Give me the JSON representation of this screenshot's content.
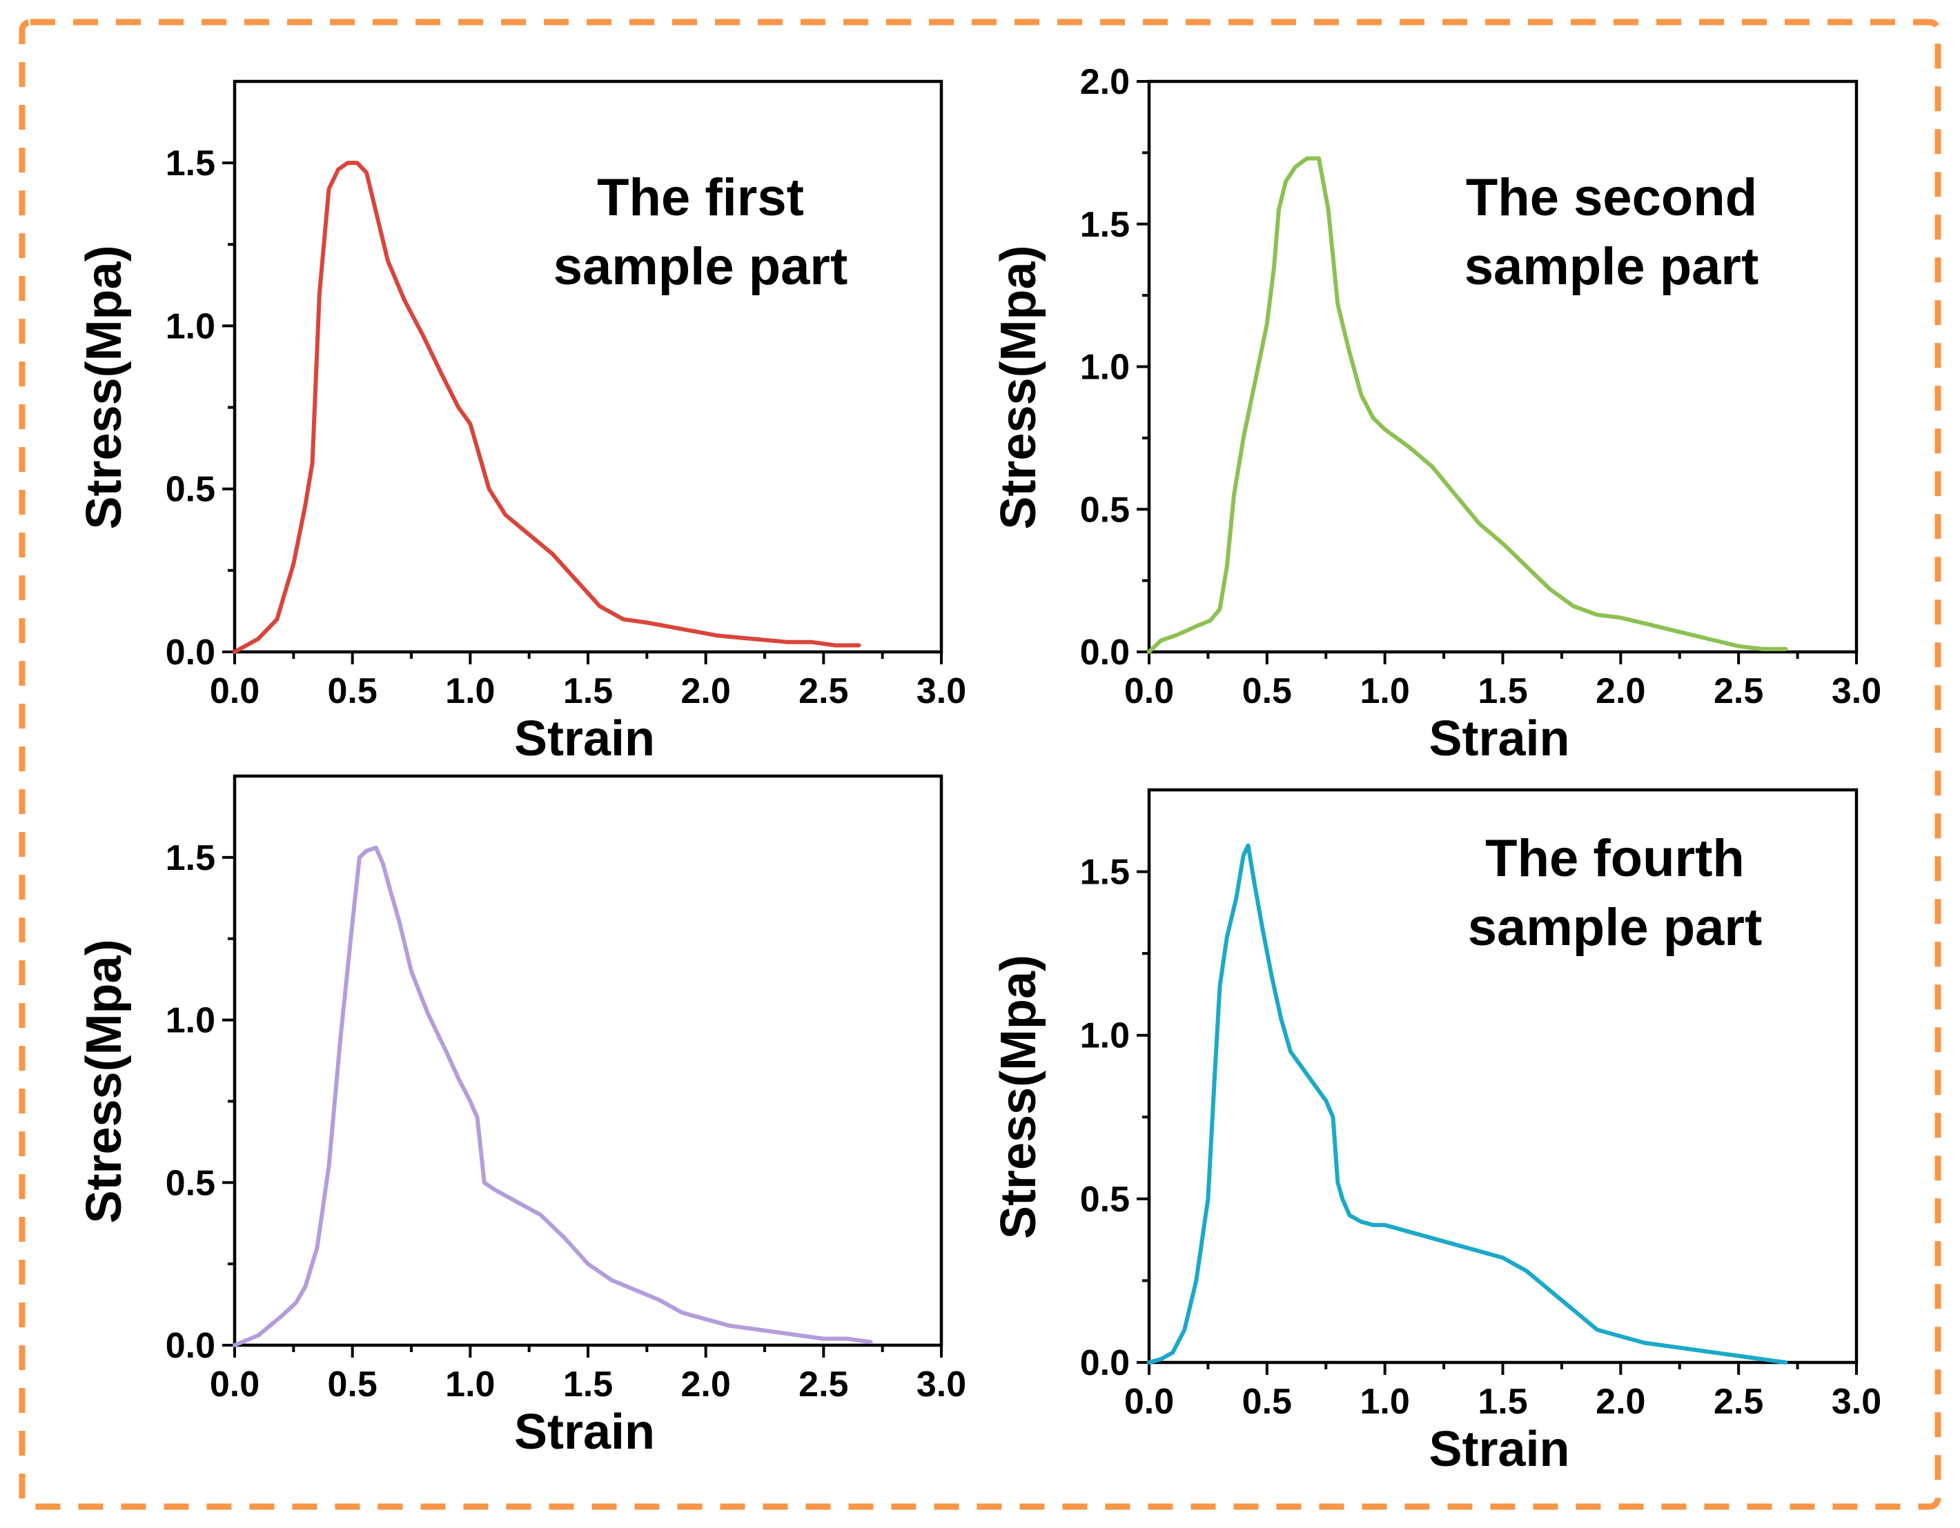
{
  "chart_data": [
    {
      "type": "line",
      "xlabel": "Strain",
      "ylabel": "Stress(Mpa)",
      "xlim": [
        0,
        3.0
      ],
      "ylim": [
        0,
        1.75
      ],
      "xticks": [
        "0.0",
        "0.5",
        "1.0",
        "1.5",
        "2.0",
        "2.5",
        "3.0"
      ],
      "yticks": [
        "0.0",
        "0.5",
        "1.0",
        "1.5"
      ],
      "annotation": [
        "The first",
        "sample part"
      ],
      "color": "#d9453a",
      "series": [
        {
          "x": [
            0,
            0.1,
            0.18,
            0.25,
            0.3,
            0.33,
            0.36,
            0.4,
            0.44,
            0.48,
            0.52,
            0.56,
            0.6,
            0.65,
            0.72,
            0.8,
            0.88,
            0.95,
            1.0,
            1.04,
            1.08,
            1.15,
            1.25,
            1.35,
            1.45,
            1.55,
            1.65,
            1.75,
            1.9,
            2.05,
            2.2,
            2.35,
            2.45,
            2.55,
            2.65
          ],
          "y": [
            0,
            0.04,
            0.1,
            0.27,
            0.45,
            0.58,
            1.1,
            1.42,
            1.48,
            1.5,
            1.5,
            1.47,
            1.35,
            1.2,
            1.08,
            0.97,
            0.85,
            0.75,
            0.7,
            0.6,
            0.5,
            0.42,
            0.36,
            0.3,
            0.22,
            0.14,
            0.1,
            0.09,
            0.07,
            0.05,
            0.04,
            0.03,
            0.03,
            0.02,
            0.02
          ]
        }
      ]
    },
    {
      "type": "line",
      "xlabel": "Strain",
      "ylabel": "Stress(Mpa)",
      "xlim": [
        0,
        3.0
      ],
      "ylim": [
        0,
        2.0
      ],
      "xticks": [
        "0.0",
        "0.5",
        "1.0",
        "1.5",
        "2.0",
        "2.5",
        "3.0"
      ],
      "yticks": [
        "0.0",
        "0.5",
        "1.0",
        "1.5",
        "2.0"
      ],
      "annotation": [
        "The second",
        "sample part"
      ],
      "color": "#8cc152",
      "series": [
        {
          "x": [
            0,
            0.05,
            0.12,
            0.2,
            0.26,
            0.3,
            0.33,
            0.36,
            0.4,
            0.45,
            0.5,
            0.53,
            0.55,
            0.58,
            0.62,
            0.67,
            0.72,
            0.76,
            0.8,
            0.82,
            0.85,
            0.9,
            0.95,
            1.0,
            1.1,
            1.2,
            1.3,
            1.4,
            1.5,
            1.6,
            1.7,
            1.8,
            1.9,
            2.0,
            2.1,
            2.2,
            2.3,
            2.4,
            2.5,
            2.6,
            2.7
          ],
          "y": [
            0,
            0.04,
            0.06,
            0.09,
            0.11,
            0.15,
            0.3,
            0.55,
            0.75,
            0.95,
            1.15,
            1.35,
            1.55,
            1.65,
            1.7,
            1.73,
            1.73,
            1.55,
            1.22,
            1.15,
            1.05,
            0.9,
            0.82,
            0.78,
            0.72,
            0.65,
            0.55,
            0.45,
            0.38,
            0.3,
            0.22,
            0.16,
            0.13,
            0.12,
            0.1,
            0.08,
            0.06,
            0.04,
            0.02,
            0.01,
            0.01
          ]
        }
      ]
    },
    {
      "type": "line",
      "xlabel": "Strain",
      "ylabel": "Stress(Mpa)",
      "xlim": [
        0,
        3.0
      ],
      "ylim": [
        0,
        1.75
      ],
      "xticks": [
        "0.0",
        "0.5",
        "1.0",
        "1.5",
        "2.0",
        "2.5",
        "3.0"
      ],
      "yticks": [
        "0.0",
        "0.5",
        "1.0",
        "1.5"
      ],
      "annotation": [],
      "color": "#b39ddb",
      "series": [
        {
          "x": [
            0,
            0.1,
            0.2,
            0.26,
            0.3,
            0.35,
            0.4,
            0.45,
            0.5,
            0.53,
            0.56,
            0.6,
            0.63,
            0.66,
            0.7,
            0.75,
            0.82,
            0.9,
            0.95,
            1.0,
            1.03,
            1.06,
            1.1,
            1.2,
            1.3,
            1.4,
            1.5,
            1.6,
            1.7,
            1.8,
            1.9,
            2.0,
            2.1,
            2.2,
            2.3,
            2.4,
            2.5,
            2.6,
            2.7
          ],
          "y": [
            0,
            0.03,
            0.09,
            0.13,
            0.18,
            0.3,
            0.55,
            0.95,
            1.3,
            1.5,
            1.52,
            1.53,
            1.48,
            1.4,
            1.3,
            1.15,
            1.02,
            0.9,
            0.82,
            0.75,
            0.7,
            0.5,
            0.48,
            0.44,
            0.4,
            0.33,
            0.25,
            0.2,
            0.17,
            0.14,
            0.1,
            0.08,
            0.06,
            0.05,
            0.04,
            0.03,
            0.02,
            0.02,
            0.01
          ]
        }
      ]
    },
    {
      "type": "line",
      "xlabel": "Strain",
      "ylabel": "Stress(Mpa)",
      "xlim": [
        0,
        3.0
      ],
      "ylim": [
        0,
        1.75
      ],
      "xticks": [
        "0.0",
        "0.5",
        "1.0",
        "1.5",
        "2.0",
        "2.5",
        "3.0"
      ],
      "yticks": [
        "0.0",
        "0.5",
        "1.0",
        "1.5"
      ],
      "annotation": [
        "The fourth",
        "sample part"
      ],
      "color": "#1ba9c8",
      "series": [
        {
          "x": [
            0,
            0.05,
            0.1,
            0.15,
            0.2,
            0.25,
            0.28,
            0.3,
            0.33,
            0.37,
            0.4,
            0.42,
            0.45,
            0.48,
            0.52,
            0.56,
            0.6,
            0.65,
            0.7,
            0.75,
            0.78,
            0.8,
            0.82,
            0.85,
            0.9,
            0.95,
            1.0,
            1.1,
            1.2,
            1.3,
            1.4,
            1.5,
            1.6,
            1.7,
            1.8,
            1.9,
            2.0,
            2.1,
            2.2,
            2.3,
            2.4,
            2.5,
            2.6,
            2.7
          ],
          "y": [
            0,
            0.01,
            0.03,
            0.1,
            0.25,
            0.5,
            0.9,
            1.15,
            1.3,
            1.42,
            1.55,
            1.58,
            1.45,
            1.33,
            1.18,
            1.05,
            0.95,
            0.9,
            0.85,
            0.8,
            0.75,
            0.55,
            0.5,
            0.45,
            0.43,
            0.42,
            0.42,
            0.4,
            0.38,
            0.36,
            0.34,
            0.32,
            0.28,
            0.22,
            0.16,
            0.1,
            0.08,
            0.06,
            0.05,
            0.04,
            0.03,
            0.02,
            0.01,
            0
          ]
        }
      ]
    }
  ]
}
